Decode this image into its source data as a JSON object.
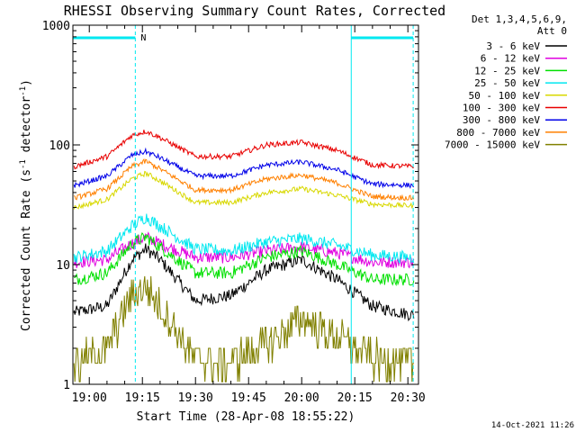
{
  "chart_data": {
    "type": "line",
    "title": "RHESSI Observing Summary Count Rates, Corrected",
    "xlabel": "Start Time (28-Apr-08 18:55:22)",
    "ylabel": "Corrected Count Rate (s⁻¹ detector⁻¹)",
    "ylabel_main": "Corrected Count Rate (s",
    "ylabel_sup1": "-1",
    "ylabel_mid": " detector",
    "ylabel_sup2": "-1",
    "ylabel_end": ")",
    "y_scale": "log",
    "ylim": [
      1,
      1000
    ],
    "xlim": [
      "18:55:22",
      "20:33:00"
    ],
    "x_ticks": [
      "19:00",
      "19:15",
      "19:30",
      "19:45",
      "20:00",
      "20:15",
      "20:30"
    ],
    "y_ticks": [
      "1",
      "10",
      "100",
      "1000"
    ],
    "legend_header": [
      "Det 1,3,4,5,6,9,",
      "Att 0"
    ],
    "legend_position": "right",
    "night_intervals": [
      [
        "18:55:22",
        "19:13:00"
      ],
      [
        "20:14:00",
        "20:31:30"
      ]
    ],
    "night_marker": "N",
    "series": [
      {
        "name": "3 - 6 keV",
        "color": "#000000",
        "x": [
          "18:56",
          "19:05",
          "19:12",
          "19:16",
          "19:20",
          "19:30",
          "19:40",
          "19:50",
          "20:00",
          "20:10",
          "20:20",
          "20:31"
        ],
        "values": [
          4.0,
          4.5,
          11,
          13.5,
          11,
          5,
          5.5,
          9,
          11,
          7.5,
          4.5,
          3.8
        ]
      },
      {
        "name": "6 - 12 keV",
        "color": "#e000e0",
        "x": [
          "18:56",
          "19:05",
          "19:12",
          "19:16",
          "19:20",
          "19:30",
          "19:40",
          "19:50",
          "20:00",
          "20:10",
          "20:20",
          "20:31"
        ],
        "values": [
          10.5,
          11,
          15,
          17,
          15,
          11.5,
          11.5,
          13,
          14,
          12.5,
          10.5,
          10.5
        ]
      },
      {
        "name": "12 - 25 keV",
        "color": "#00e000",
        "x": [
          "18:56",
          "19:05",
          "19:12",
          "19:16",
          "19:20",
          "19:30",
          "19:40",
          "19:50",
          "20:00",
          "20:10",
          "20:20",
          "20:31"
        ],
        "values": [
          7.5,
          8.5,
          15,
          17,
          14,
          8.5,
          8.5,
          11.5,
          13,
          10,
          7.5,
          7.5
        ]
      },
      {
        "name": "25 - 50 keV",
        "color": "#00e8f0",
        "x": [
          "18:56",
          "19:05",
          "19:12",
          "19:16",
          "19:20",
          "19:30",
          "19:40",
          "19:50",
          "20:00",
          "20:10",
          "20:20",
          "20:31"
        ],
        "values": [
          11.5,
          13,
          21,
          25,
          21,
          13.5,
          13,
          15.5,
          16.5,
          14.5,
          12,
          11.5
        ]
      },
      {
        "name": "50 - 100 keV",
        "color": "#d8d800",
        "x": [
          "18:56",
          "19:05",
          "19:12",
          "19:16",
          "19:20",
          "19:30",
          "19:40",
          "19:50",
          "20:00",
          "20:10",
          "20:20",
          "20:31"
        ],
        "values": [
          30,
          35,
          52,
          58,
          50,
          33,
          33,
          40,
          43,
          38,
          32,
          31
        ]
      },
      {
        "name": "100 - 300 keV",
        "color": "#e80000",
        "x": [
          "18:56",
          "19:05",
          "19:12",
          "19:16",
          "19:20",
          "19:30",
          "19:40",
          "19:50",
          "20:00",
          "20:10",
          "20:20",
          "20:31"
        ],
        "values": [
          66,
          80,
          120,
          130,
          115,
          80,
          80,
          100,
          105,
          90,
          68,
          66
        ]
      },
      {
        "name": "300 - 800 keV",
        "color": "#0000e8",
        "x": [
          "18:56",
          "19:05",
          "19:12",
          "19:16",
          "19:20",
          "19:30",
          "19:40",
          "19:50",
          "20:00",
          "20:10",
          "20:20",
          "20:31"
        ],
        "values": [
          46,
          55,
          82,
          88,
          78,
          55,
          55,
          68,
          72,
          62,
          47,
          46
        ]
      },
      {
        "name": "800 - 7000 keV",
        "color": "#ff8000",
        "x": [
          "18:56",
          "19:05",
          "19:12",
          "19:16",
          "19:20",
          "19:30",
          "19:40",
          "19:50",
          "20:00",
          "20:10",
          "20:20",
          "20:31"
        ],
        "values": [
          36,
          43,
          66,
          73,
          63,
          42,
          42,
          52,
          56,
          48,
          37,
          36
        ]
      },
      {
        "name": "7000 - 15000 keV",
        "color": "#808000",
        "x": [
          "18:56",
          "19:05",
          "19:12",
          "19:16",
          "19:20",
          "19:30",
          "19:40",
          "19:50",
          "20:00",
          "20:10",
          "20:20",
          "20:31"
        ],
        "values": [
          1.5,
          2.0,
          5.5,
          6.5,
          4.5,
          1.6,
          1.5,
          2.2,
          3.5,
          2.5,
          1.6,
          1.5
        ]
      }
    ],
    "timestamp": "14-Oct-2021 11:26"
  }
}
